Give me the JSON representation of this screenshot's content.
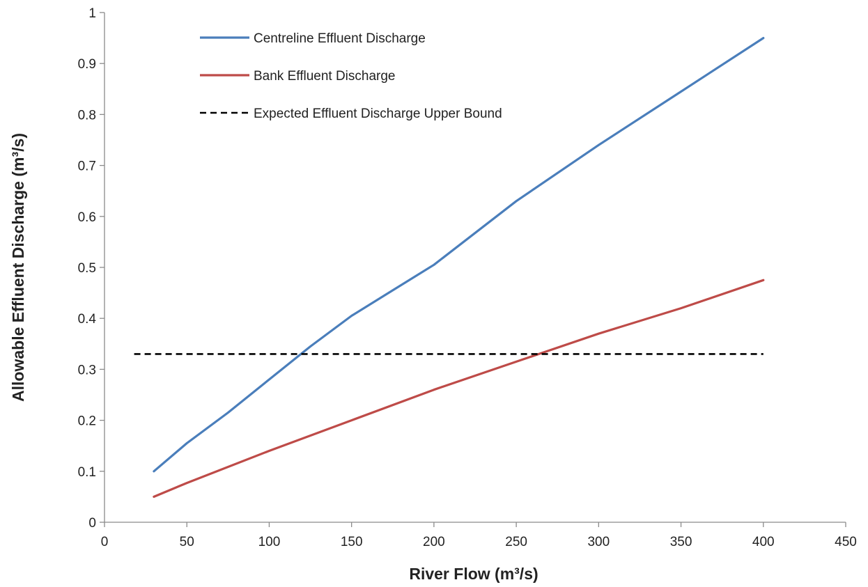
{
  "chart_data": {
    "type": "line",
    "title": "",
    "xlabel": "River Flow (m³/s)",
    "ylabel": "Allowable Effluent Discharge (m³/s)",
    "xlim": [
      0,
      450
    ],
    "ylim": [
      0,
      1
    ],
    "x_ticks": [
      0,
      50,
      100,
      150,
      200,
      250,
      300,
      350,
      400,
      450
    ],
    "y_ticks": [
      0,
      0.1,
      0.2,
      0.3,
      0.4,
      0.5,
      0.6,
      0.7,
      0.8,
      0.9,
      1
    ],
    "x_tick_labels": [
      "0",
      "50",
      "100",
      "150",
      "200",
      "250",
      "300",
      "350",
      "400",
      "450"
    ],
    "y_tick_labels": [
      "0",
      "0.1",
      "0.2",
      "0.3",
      "0.4",
      "0.5",
      "0.6",
      "0.7",
      "0.8",
      "0.9",
      "1"
    ],
    "grid": false,
    "legend_position": "top-left",
    "series": [
      {
        "name": "Centreline Effluent Discharge",
        "color": "#4a7ebb",
        "style": "solid",
        "x": [
          30,
          50,
          75,
          100,
          125,
          150,
          175,
          200,
          250,
          300,
          350,
          400
        ],
        "y": [
          0.1,
          0.155,
          0.215,
          0.28,
          0.345,
          0.405,
          0.455,
          0.505,
          0.63,
          0.74,
          0.845,
          0.95
        ]
      },
      {
        "name": "Bank Effluent Discharge",
        "color": "#be4b48",
        "style": "solid",
        "x": [
          30,
          50,
          100,
          150,
          200,
          250,
          300,
          350,
          400
        ],
        "y": [
          0.05,
          0.077,
          0.14,
          0.2,
          0.26,
          0.315,
          0.37,
          0.42,
          0.475
        ]
      },
      {
        "name": "Expected Effluent Discharge Upper Bound",
        "color": "#000000",
        "style": "dashed",
        "x": [
          18,
          400
        ],
        "y": [
          0.33,
          0.33
        ]
      }
    ]
  }
}
